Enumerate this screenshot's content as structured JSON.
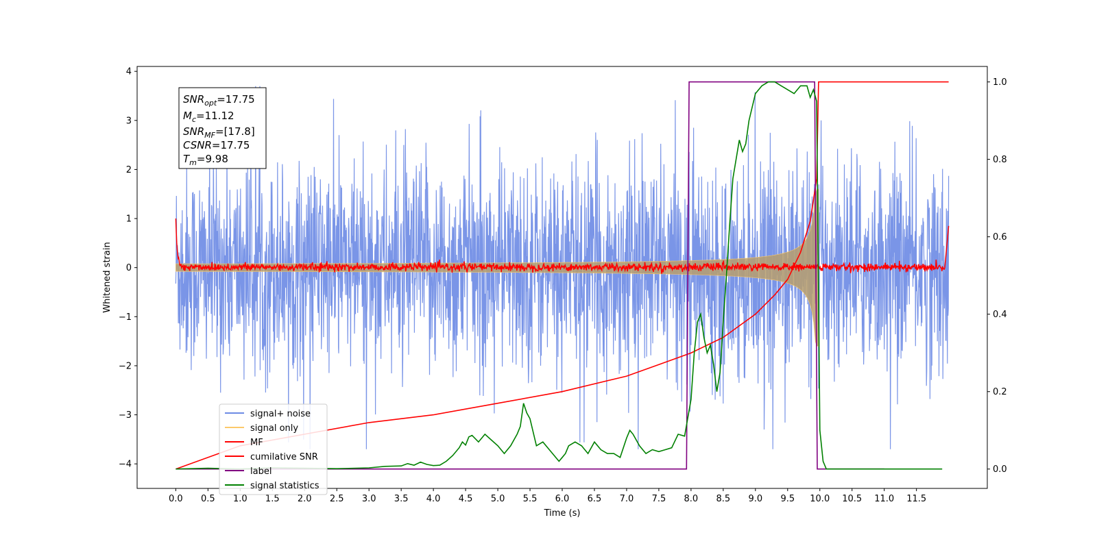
{
  "chart_data": {
    "type": "line",
    "title": "",
    "xlabel": "Time (s)",
    "ylabel": "Whitened strain",
    "xlim": [
      -0.6,
      12.6
    ],
    "ylim": [
      -4.5,
      4.1
    ],
    "y2lim": [
      -0.05,
      1.04
    ],
    "grid": false,
    "legend_position": "bottom-left",
    "x_ticks": [
      "0.0",
      "0.5",
      "1.0",
      "1.5",
      "2.0",
      "2.5",
      "3.0",
      "3.5",
      "4.0",
      "4.5",
      "5.0",
      "5.5",
      "6.0",
      "6.5",
      "7.0",
      "7.5",
      "8.0",
      "8.5",
      "9.0",
      "9.5",
      "10.0",
      "10.5",
      "11.0",
      "11.5"
    ],
    "y_ticks": [
      "4",
      "3",
      "2",
      "1",
      "0",
      "−1",
      "−2",
      "−3",
      "−4"
    ],
    "y2_ticks": [
      "1.0",
      "0.8",
      "0.6",
      "0.4",
      "0.2",
      "0.0"
    ],
    "annotation": {
      "lines": [
        {
          "base": "SNR",
          "sub": "opt",
          "value": "=17.75"
        },
        {
          "base": "M",
          "sub": "c",
          "value": "=11.12"
        },
        {
          "base": "SNR",
          "sub": "MF",
          "value": "=[17.8]"
        },
        {
          "base": "CSNR",
          "sub": "",
          "value": "=17.75"
        },
        {
          "base": "T",
          "sub": "m",
          "value": "=9.98"
        }
      ]
    },
    "series": [
      {
        "name": "signal+ noise",
        "color": "#6c8ae4",
        "axis": "left",
        "kind": "noise",
        "x_range": [
          0.0,
          12.0
        ],
        "approx_amplitude": 3.7
      },
      {
        "name": "signal only",
        "color": "#fcc96a",
        "axis": "left",
        "kind": "chirp",
        "x_range": [
          0.0,
          9.98
        ],
        "merger_time": 9.98
      },
      {
        "name": "MF",
        "color": "#ff0000",
        "axis": "left",
        "kind": "mf",
        "x_range": [
          0.0,
          12.0
        ],
        "start_value": 1.0,
        "end_value": 0.85
      },
      {
        "name": "cumilative SNR",
        "color": "#ff0000",
        "axis": "right",
        "x": [
          0.0,
          1.0,
          2.0,
          3.0,
          4.0,
          5.0,
          6.0,
          7.0,
          7.5,
          8.0,
          8.5,
          9.0,
          9.3,
          9.5,
          9.7,
          9.85,
          9.95,
          9.98,
          12.0
        ],
        "y": [
          0.0,
          0.06,
          0.09,
          0.12,
          0.14,
          0.17,
          0.2,
          0.24,
          0.27,
          0.3,
          0.34,
          0.4,
          0.45,
          0.49,
          0.56,
          0.64,
          0.75,
          1.0,
          1.0
        ]
      },
      {
        "name": "label",
        "color": "#800080",
        "axis": "right",
        "x": [
          0.0,
          7.93,
          7.97,
          9.92,
          9.96,
          11.0
        ],
        "y": [
          0.0,
          0.0,
          1.0,
          1.0,
          0.0,
          0.0
        ]
      },
      {
        "name": "signal statistics",
        "color": "#008000",
        "axis": "right",
        "x": [
          0.0,
          0.5,
          1.0,
          1.5,
          2.0,
          2.5,
          3.0,
          3.25,
          3.5,
          3.6,
          3.7,
          3.8,
          3.9,
          4.0,
          4.1,
          4.2,
          4.3,
          4.4,
          4.45,
          4.5,
          4.55,
          4.6,
          4.7,
          4.8,
          4.9,
          5.0,
          5.1,
          5.2,
          5.3,
          5.35,
          5.4,
          5.45,
          5.5,
          5.6,
          5.7,
          5.8,
          5.9,
          5.95,
          6.0,
          6.05,
          6.1,
          6.2,
          6.3,
          6.4,
          6.5,
          6.6,
          6.7,
          6.8,
          6.9,
          7.0,
          7.05,
          7.1,
          7.2,
          7.3,
          7.4,
          7.5,
          7.6,
          7.7,
          7.8,
          7.9,
          8.0,
          8.05,
          8.1,
          8.15,
          8.2,
          8.25,
          8.3,
          8.35,
          8.4,
          8.45,
          8.5,
          8.55,
          8.6,
          8.65,
          8.7,
          8.75,
          8.8,
          8.85,
          8.9,
          9.0,
          9.1,
          9.2,
          9.3,
          9.4,
          9.5,
          9.6,
          9.7,
          9.8,
          9.85,
          9.9,
          9.95,
          10.0,
          10.05,
          10.1,
          10.5,
          11.0,
          11.5,
          11.9
        ],
        "y": [
          0.0,
          0.002,
          0.0,
          0.003,
          0.002,
          0.001,
          0.003,
          0.007,
          0.008,
          0.014,
          0.01,
          0.018,
          0.012,
          0.009,
          0.01,
          0.02,
          0.035,
          0.055,
          0.07,
          0.062,
          0.083,
          0.087,
          0.07,
          0.09,
          0.075,
          0.06,
          0.04,
          0.06,
          0.09,
          0.11,
          0.17,
          0.145,
          0.13,
          0.06,
          0.07,
          0.05,
          0.03,
          0.02,
          0.03,
          0.04,
          0.06,
          0.07,
          0.06,
          0.04,
          0.07,
          0.05,
          0.04,
          0.04,
          0.03,
          0.08,
          0.1,
          0.09,
          0.06,
          0.04,
          0.05,
          0.045,
          0.05,
          0.055,
          0.09,
          0.085,
          0.18,
          0.3,
          0.38,
          0.4,
          0.34,
          0.3,
          0.32,
          0.27,
          0.2,
          0.25,
          0.38,
          0.5,
          0.63,
          0.75,
          0.8,
          0.85,
          0.82,
          0.84,
          0.9,
          0.97,
          0.99,
          1.0,
          1.0,
          0.99,
          0.98,
          0.97,
          0.99,
          0.99,
          0.96,
          0.98,
          0.95,
          0.1,
          0.02,
          0.0,
          0.0,
          0.0,
          0.0,
          0.0
        ]
      }
    ]
  }
}
